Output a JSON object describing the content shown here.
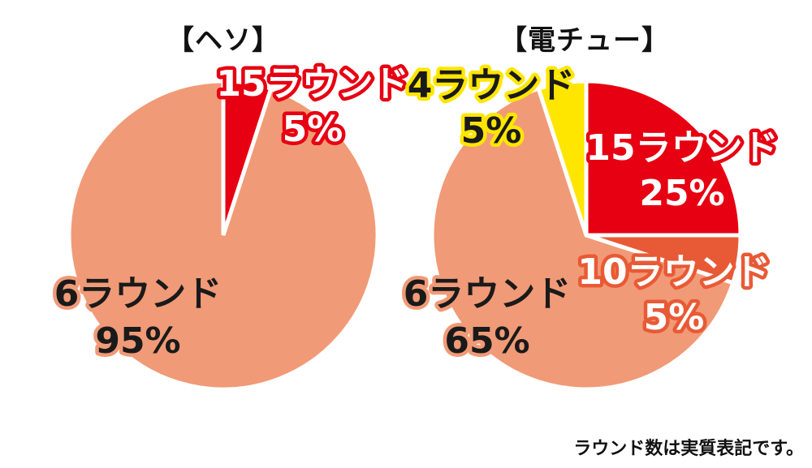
{
  "footnote": "ラウンド数は実質表記です。",
  "chart_data": [
    {
      "type": "pie",
      "title": "【ヘソ】",
      "slices": [
        {
          "label": "15ラウンド",
          "value": 5,
          "value_label": "5%",
          "color": "#E60012",
          "text_color": "#FFFFFF",
          "outline_color": "#E60012"
        },
        {
          "label": "6ラウンド",
          "value": 95,
          "value_label": "95%",
          "color": "#F19A77",
          "text_color": "#1A1A1A",
          "outline_color": "#F19A77"
        }
      ]
    },
    {
      "type": "pie",
      "title": "【電チュー】",
      "slices": [
        {
          "label": "15ラウンド",
          "value": 25,
          "value_label": "25%",
          "color": "#E60012",
          "text_color": "#FFFFFF",
          "outline_color": "#E60012"
        },
        {
          "label": "10ラウンド",
          "value": 5,
          "value_label": "5%",
          "color": "#E85A35",
          "text_color": "#FFFFFF",
          "outline_color": "#E85A35"
        },
        {
          "label": "6ラウンド",
          "value": 65,
          "value_label": "65%",
          "color": "#F19A77",
          "text_color": "#1A1A1A",
          "outline_color": "#F19A77"
        },
        {
          "label": "4ラウンド",
          "value": 5,
          "value_label": "5%",
          "color": "#FFE600",
          "text_color": "#1A1A1A",
          "outline_color": "#FFE600"
        }
      ]
    }
  ]
}
